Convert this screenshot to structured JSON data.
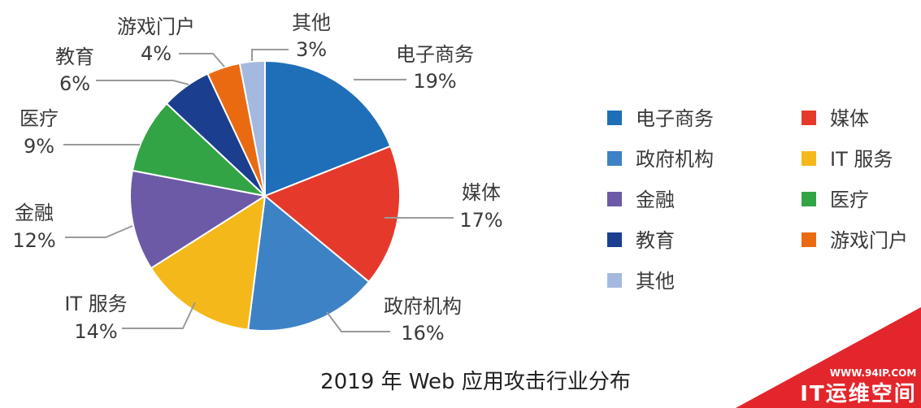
{
  "chart_data": {
    "type": "pie",
    "title": "2019 年 Web 应用攻击行业分布",
    "start_angle": "12 o'clock",
    "direction": "clockwise",
    "legend_position": "right",
    "slices": [
      {
        "name": "电子商务",
        "value": 19,
        "label": "19%",
        "color": "#1f6fb8"
      },
      {
        "name": "媒体",
        "value": 17,
        "label": "17%",
        "color": "#e53a2b"
      },
      {
        "name": "政府机构",
        "value": 16,
        "label": "16%",
        "color": "#3e82c6"
      },
      {
        "name": "IT 服务",
        "value": 14,
        "label": "14%",
        "color": "#f5b81a"
      },
      {
        "name": "金融",
        "value": 12,
        "label": "12%",
        "color": "#6d5aa6"
      },
      {
        "name": "医疗",
        "value": 9,
        "label": "9%",
        "color": "#33a445"
      },
      {
        "name": "教育",
        "value": 6,
        "label": "6%",
        "color": "#1b3e8f"
      },
      {
        "name": "游戏门户",
        "value": 4,
        "label": "4%",
        "color": "#ea6a12"
      },
      {
        "name": "其他",
        "value": 3,
        "label": "3%",
        "color": "#a4b9e0"
      }
    ]
  },
  "watermark": {
    "url": "WWW.94IP.COM",
    "name": "IT运维空间",
    "color": "#e3262b"
  }
}
